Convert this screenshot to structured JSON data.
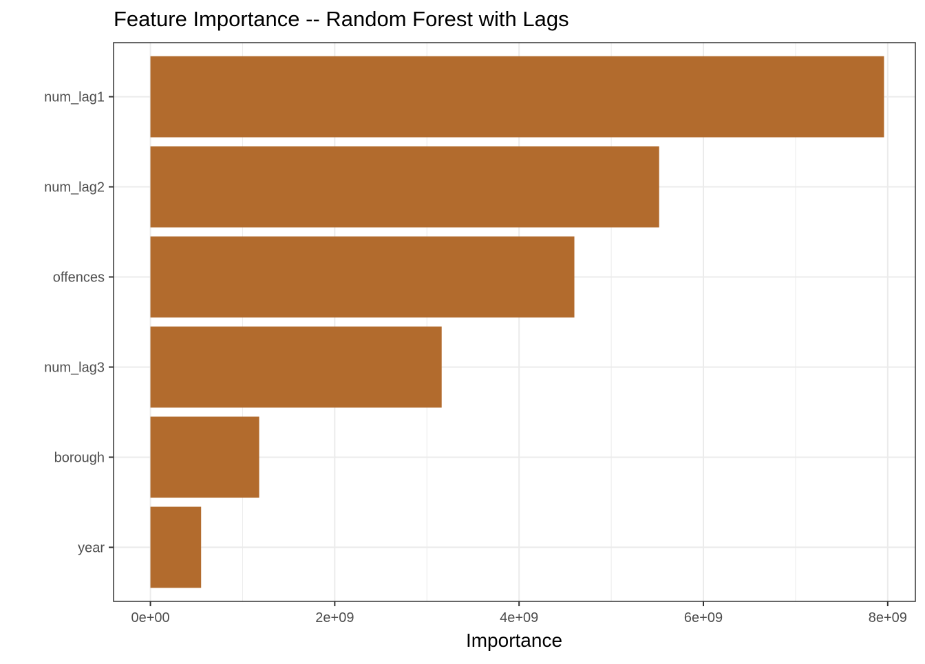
{
  "chart_data": {
    "type": "bar",
    "orientation": "horizontal",
    "title": "Feature Importance -- Random Forest with Lags",
    "xlabel": "Importance",
    "ylabel": "",
    "categories": [
      "num_lag1",
      "num_lag2",
      "offences",
      "num_lag3",
      "borough",
      "year"
    ],
    "values": [
      7960000000,
      5520000000,
      4600000000,
      3160000000,
      1180000000,
      550000000
    ],
    "xlim": [
      -400000000,
      8300000000
    ],
    "x_ticks": [
      0,
      2000000000,
      4000000000,
      6000000000,
      8000000000
    ],
    "x_tick_labels": [
      "0e+00",
      "2e+09",
      "4e+09",
      "6e+09",
      "8e+09"
    ],
    "x_minor_ticks": [
      1000000000,
      3000000000,
      5000000000,
      7000000000
    ],
    "grid": true,
    "legend": "none",
    "bar_color": "#b26b2d",
    "grid_color": "#ebebeb",
    "panel_border_color": "#333333"
  }
}
